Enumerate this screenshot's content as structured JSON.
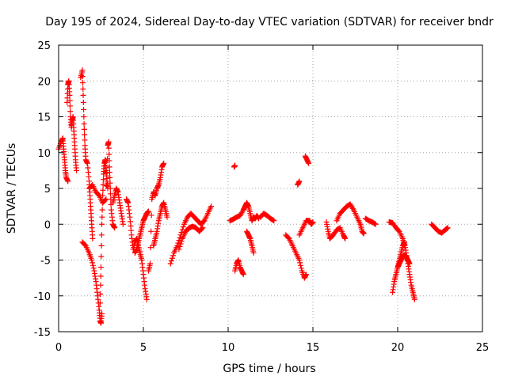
{
  "chart_data": {
    "type": "scatter",
    "title": "Day 195 of 2024, Sidereal Day-to-day VTEC variation (SDTVAR) for receiver bndr",
    "xlabel": "GPS time / hours",
    "ylabel": "SDTVAR / TECUs",
    "xlim": [
      0,
      25
    ],
    "ylim": [
      -15,
      25
    ],
    "xticks": [
      0,
      5,
      10,
      15,
      20,
      25
    ],
    "yticks": [
      -15,
      -10,
      -5,
      0,
      5,
      10,
      15,
      20,
      25
    ],
    "grid": true,
    "marker": "plus",
    "color": "#ff0000",
    "series": [
      {
        "name": "SDTVAR",
        "segments": [
          [
            [
              0.0,
              10.5
            ],
            [
              0.15,
              11.5
            ],
            [
              0.25,
              12.0
            ],
            [
              0.3,
              10.5
            ],
            [
              0.35,
              9.0
            ],
            [
              0.4,
              7.5
            ],
            [
              0.45,
              6.5
            ],
            [
              0.55,
              6.0
            ]
          ],
          [
            [
              0.5,
              17.0
            ],
            [
              0.55,
              19.5
            ],
            [
              0.6,
              20.0
            ],
            [
              0.65,
              18.0
            ],
            [
              0.7,
              15.0
            ],
            [
              0.75,
              13.5
            ],
            [
              0.8,
              14.5
            ],
            [
              0.85,
              15.0
            ],
            [
              0.9,
              13.0
            ],
            [
              0.95,
              11.0
            ],
            [
              1.0,
              9.0
            ],
            [
              1.05,
              7.5
            ]
          ],
          [
            [
              1.3,
              20.5
            ],
            [
              1.4,
              21.5
            ],
            [
              1.45,
              18.0
            ],
            [
              1.5,
              14.0
            ],
            [
              1.55,
              11.0
            ],
            [
              1.6,
              9.0
            ],
            [
              1.7,
              8.5
            ],
            [
              1.8,
              6.0
            ],
            [
              1.85,
              4.0
            ],
            [
              1.9,
              2.0
            ],
            [
              1.95,
              0.0
            ],
            [
              2.0,
              -2.0
            ]
          ],
          [
            [
              1.4,
              -2.5
            ],
            [
              1.6,
              -3.0
            ],
            [
              1.8,
              -4.0
            ],
            [
              1.95,
              -5.0
            ],
            [
              2.1,
              -6.5
            ],
            [
              2.2,
              -8.0
            ],
            [
              2.3,
              -10.0
            ],
            [
              2.4,
              -12.0
            ],
            [
              2.45,
              -13.5
            ],
            [
              2.5,
              -13.8
            ],
            [
              2.55,
              -12.5
            ]
          ],
          [
            [
              2.45,
              -11.0
            ],
            [
              2.5,
              -6.0
            ],
            [
              2.55,
              0.0
            ],
            [
              2.6,
              4.0
            ],
            [
              2.65,
              7.0
            ],
            [
              2.7,
              8.5
            ],
            [
              2.75,
              9.0
            ],
            [
              2.8,
              7.5
            ],
            [
              2.85,
              6.0
            ],
            [
              2.9,
              5.0
            ]
          ],
          [
            [
              1.8,
              5.0
            ],
            [
              2.0,
              5.5
            ],
            [
              2.2,
              4.5
            ],
            [
              2.4,
              4.0
            ],
            [
              2.6,
              3.0
            ],
            [
              2.8,
              3.5
            ],
            [
              2.9,
              11.0
            ],
            [
              2.95,
              11.5
            ],
            [
              3.0,
              8.0
            ],
            [
              3.05,
              5.0
            ],
            [
              3.1,
              2.0
            ],
            [
              3.2,
              0.0
            ],
            [
              3.3,
              -0.5
            ]
          ],
          [
            [
              3.2,
              3.0
            ],
            [
              3.3,
              4.0
            ],
            [
              3.4,
              5.0
            ],
            [
              3.5,
              4.5
            ],
            [
              3.6,
              3.0
            ],
            [
              3.7,
              1.5
            ],
            [
              3.8,
              0.0
            ]
          ],
          [
            [
              4.0,
              3.5
            ],
            [
              4.1,
              3.0
            ],
            [
              4.2,
              1.0
            ],
            [
              4.3,
              -1.5
            ],
            [
              4.4,
              -3.5
            ],
            [
              4.5,
              -2.5
            ],
            [
              4.6,
              -2.0
            ],
            [
              4.7,
              -3.0
            ],
            [
              4.8,
              -4.0
            ],
            [
              4.9,
              -5.0
            ],
            [
              5.0,
              -7.0
            ],
            [
              5.1,
              -9.0
            ],
            [
              5.2,
              -10.5
            ]
          ],
          [
            [
              4.5,
              -4.0
            ],
            [
              4.6,
              -3.5
            ],
            [
              4.7,
              -2.5
            ],
            [
              4.8,
              -1.5
            ],
            [
              4.9,
              -0.5
            ],
            [
              5.0,
              0.5
            ],
            [
              5.1,
              1.0
            ],
            [
              5.2,
              1.5
            ],
            [
              5.3,
              1.8
            ]
          ],
          [
            [
              5.3,
              -6.5
            ],
            [
              5.4,
              -5.5
            ],
            [
              5.5,
              3.5
            ],
            [
              5.6,
              4.5
            ],
            [
              5.7,
              4.0
            ],
            [
              5.8,
              5.0
            ],
            [
              5.9,
              5.5
            ],
            [
              6.0,
              6.5
            ],
            [
              6.1,
              8.0
            ],
            [
              6.2,
              8.5
            ]
          ],
          [
            [
              5.6,
              -3.0
            ],
            [
              5.7,
              -2.0
            ],
            [
              5.8,
              -1.0
            ],
            [
              5.9,
              0.5
            ],
            [
              6.0,
              1.5
            ],
            [
              6.1,
              2.5
            ],
            [
              6.2,
              3.0
            ],
            [
              6.3,
              2.0
            ],
            [
              6.4,
              1.0
            ]
          ],
          [
            [
              6.6,
              -5.5
            ],
            [
              6.8,
              -4.0
            ],
            [
              7.0,
              -3.0
            ],
            [
              7.2,
              -1.5
            ],
            [
              7.4,
              0.0
            ],
            [
              7.6,
              1.0
            ],
            [
              7.8,
              1.5
            ],
            [
              8.0,
              1.0
            ],
            [
              8.2,
              0.5
            ],
            [
              8.4,
              0.0
            ],
            [
              8.6,
              0.5
            ],
            [
              8.8,
              1.5
            ],
            [
              9.0,
              2.5
            ]
          ],
          [
            [
              7.1,
              -3.5
            ],
            [
              7.3,
              -2.0
            ],
            [
              7.5,
              -1.0
            ],
            [
              7.7,
              -0.5
            ],
            [
              7.9,
              -0.3
            ],
            [
              8.1,
              -0.5
            ],
            [
              8.3,
              -1.0
            ],
            [
              8.5,
              -0.5
            ]
          ],
          [
            [
              10.35,
              8.0
            ],
            [
              10.4,
              8.2
            ]
          ],
          [
            [
              10.1,
              0.5
            ],
            [
              10.3,
              0.7
            ],
            [
              10.5,
              1.0
            ],
            [
              10.7,
              1.2
            ],
            [
              10.9,
              2.0
            ],
            [
              11.0,
              2.5
            ],
            [
              11.1,
              3.0
            ],
            [
              11.2,
              2.5
            ],
            [
              11.3,
              1.5
            ],
            [
              11.4,
              0.5
            ],
            [
              11.5,
              1.0
            ],
            [
              11.6,
              0.8
            ],
            [
              11.7,
              1.2
            ],
            [
              11.8,
              0.8
            ]
          ],
          [
            [
              11.9,
              1.0
            ],
            [
              12.1,
              1.5
            ],
            [
              12.3,
              1.2
            ],
            [
              12.5,
              0.8
            ],
            [
              12.7,
              0.5
            ]
          ],
          [
            [
              10.4,
              -6.5
            ],
            [
              10.5,
              -5.5
            ],
            [
              10.6,
              -5.0
            ],
            [
              10.7,
              -6.0
            ],
            [
              10.8,
              -6.5
            ],
            [
              10.9,
              -7.0
            ]
          ],
          [
            [
              11.1,
              -1.0
            ],
            [
              11.2,
              -1.5
            ],
            [
              11.3,
              -2.0
            ],
            [
              11.4,
              -3.0
            ],
            [
              11.5,
              -4.0
            ]
          ],
          [
            [
              13.4,
              -1.5
            ],
            [
              13.6,
              -2.0
            ],
            [
              13.8,
              -3.0
            ],
            [
              14.0,
              -4.0
            ],
            [
              14.2,
              -5.0
            ],
            [
              14.35,
              -6.5
            ],
            [
              14.5,
              -7.5
            ],
            [
              14.6,
              -7.0
            ]
          ],
          [
            [
              14.1,
              5.5
            ],
            [
              14.2,
              6.0
            ]
          ],
          [
            [
              14.55,
              9.5
            ],
            [
              14.65,
              9.0
            ],
            [
              14.75,
              8.5
            ]
          ],
          [
            [
              14.2,
              -1.5
            ],
            [
              14.4,
              -0.5
            ],
            [
              14.6,
              0.5
            ],
            [
              14.8,
              0.5
            ],
            [
              14.9,
              0.0
            ],
            [
              15.0,
              0.3
            ]
          ],
          [
            [
              15.8,
              0.3
            ],
            [
              15.9,
              -1.0
            ],
            [
              16.0,
              -2.0
            ],
            [
              16.2,
              -1.5
            ],
            [
              16.4,
              -0.8
            ],
            [
              16.6,
              -0.5
            ],
            [
              16.8,
              -1.5
            ],
            [
              16.9,
              -2.0
            ]
          ],
          [
            [
              16.4,
              0.5
            ],
            [
              16.6,
              1.5
            ],
            [
              16.8,
              2.0
            ],
            [
              17.0,
              2.5
            ],
            [
              17.2,
              2.8
            ],
            [
              17.4,
              2.0
            ],
            [
              17.6,
              1.0
            ],
            [
              17.8,
              0.0
            ],
            [
              17.9,
              -1.0
            ],
            [
              18.0,
              -1.3
            ]
          ],
          [
            [
              18.1,
              0.8
            ],
            [
              18.3,
              0.5
            ],
            [
              18.5,
              0.3
            ],
            [
              18.7,
              0.0
            ]
          ],
          [
            [
              19.5,
              0.3
            ],
            [
              19.7,
              0.2
            ],
            [
              19.9,
              -0.5
            ],
            [
              20.1,
              -1.0
            ],
            [
              20.3,
              -2.0
            ],
            [
              20.4,
              -3.0
            ]
          ],
          [
            [
              19.7,
              -9.5
            ],
            [
              19.8,
              -8.0
            ],
            [
              19.9,
              -7.0
            ],
            [
              20.0,
              -6.0
            ],
            [
              20.1,
              -5.0
            ],
            [
              20.2,
              -4.0
            ],
            [
              20.3,
              -3.0
            ],
            [
              20.4,
              -2.5
            ],
            [
              20.5,
              -4.0
            ],
            [
              20.6,
              -5.5
            ],
            [
              20.7,
              -7.0
            ],
            [
              20.8,
              -8.5
            ],
            [
              20.9,
              -9.5
            ],
            [
              21.0,
              -10.5
            ]
          ],
          [
            [
              20.0,
              -6.0
            ],
            [
              20.1,
              -5.5
            ],
            [
              20.2,
              -5.0
            ],
            [
              20.3,
              -4.5
            ],
            [
              20.4,
              -4.3
            ],
            [
              20.5,
              -4.5
            ],
            [
              20.6,
              -5.0
            ],
            [
              20.7,
              -5.5
            ]
          ],
          [
            [
              22.0,
              0.0
            ],
            [
              22.2,
              -0.5
            ],
            [
              22.4,
              -1.0
            ],
            [
              22.6,
              -1.2
            ],
            [
              22.8,
              -0.8
            ],
            [
              22.95,
              -0.5
            ]
          ]
        ]
      }
    ]
  }
}
